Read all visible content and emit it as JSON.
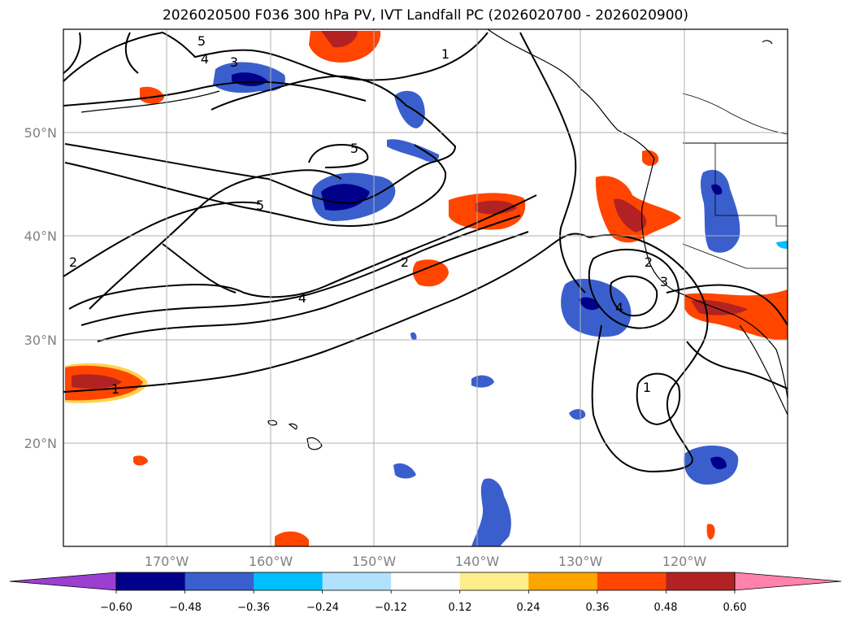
{
  "title": "2026020500 F036 300 hPa PV, IVT Landfall PC (2026020700 - 2026020900)",
  "map": {
    "lat_labels": [
      "50°N",
      "40°N",
      "30°N",
      "20°N"
    ],
    "lon_labels": [
      "170°W",
      "160°W",
      "150°W",
      "140°W",
      "130°W",
      "120°W"
    ],
    "pv_contour_labels": [
      "5",
      "4",
      "3",
      "5",
      "5",
      "4",
      "2",
      "2",
      "1",
      "2",
      "3",
      "4",
      "1",
      "1"
    ]
  },
  "colorbar": {
    "ticks": [
      "−0.60",
      "−0.48",
      "−0.36",
      "−0.24",
      "−0.12",
      "0.12",
      "0.24",
      "0.36",
      "0.48",
      "0.60"
    ],
    "colors": [
      "#9a3fd0",
      "#00008b",
      "#3a5fcd",
      "#00bfff",
      "#b0e2ff",
      "#ffffff",
      "#ffec8b",
      "#ffa500",
      "#ff4500",
      "#b22222",
      "#ff82ab"
    ]
  }
}
